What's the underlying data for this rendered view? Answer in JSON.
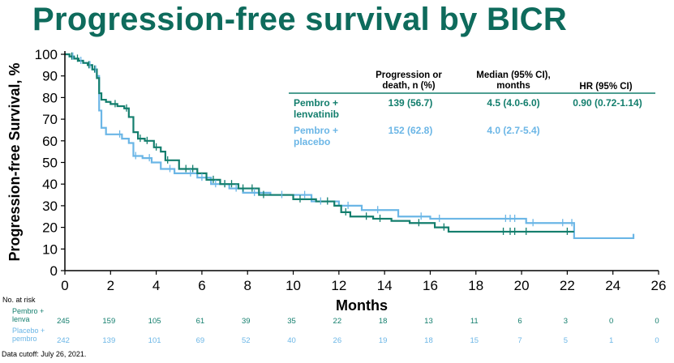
{
  "title": "Progression-free survival by BICR",
  "colors": {
    "title": "#0e6b5c",
    "pembro_lenva": "#137e6d",
    "pembro_placebo": "#6bb6e6",
    "axis": "#000000"
  },
  "footnote": "Data cutoff: July 26, 2021.",
  "chart_data": {
    "type": "line",
    "title": "Progression-free survival by BICR",
    "xlabel": "Months",
    "ylabel": "Progression-free Survival, %",
    "xlim": [
      0,
      26
    ],
    "ylim": [
      0,
      100
    ],
    "xticks": [
      "0",
      "2",
      "4",
      "6",
      "8",
      "10",
      "12",
      "14",
      "16",
      "18",
      "20",
      "22",
      "24",
      "26"
    ],
    "yticks": [
      "0",
      "10",
      "20",
      "30",
      "40",
      "50",
      "60",
      "70",
      "80",
      "90",
      "100"
    ],
    "grid": false,
    "series": [
      {
        "name": "Pembro + lenvatinib",
        "color": "#137e6d",
        "x": [
          0,
          0.2,
          0.4,
          0.6,
          0.8,
          1.0,
          1.2,
          1.4,
          1.5,
          1.6,
          1.8,
          2.0,
          2.3,
          2.6,
          2.8,
          3.0,
          3.2,
          3.5,
          3.9,
          4.2,
          4.4,
          5.0,
          5.8,
          6.2,
          6.8,
          7.6,
          8.5,
          10.0,
          11.0,
          11.8,
          12.1,
          12.5,
          13.5,
          14.3,
          15.1,
          16.2,
          16.8,
          18.5,
          22.3
        ],
        "y": [
          100,
          99,
          98,
          97,
          96,
          95,
          93,
          89,
          82,
          79,
          78,
          77,
          76,
          75,
          71,
          64,
          61,
          60,
          57,
          55,
          51,
          47,
          45,
          42,
          40,
          38,
          35,
          33,
          32,
          30,
          27,
          25,
          24,
          23,
          22,
          20,
          18,
          18,
          18
        ]
      },
      {
        "name": "Pembro + placebo",
        "color": "#6bb6e6",
        "x": [
          0,
          0.2,
          0.4,
          0.6,
          0.8,
          1.0,
          1.2,
          1.4,
          1.5,
          1.6,
          1.8,
          2.5,
          2.8,
          3.0,
          3.4,
          3.8,
          4.2,
          4.8,
          5.8,
          6.4,
          7.2,
          7.8,
          9.0,
          10.8,
          12.0,
          13.0,
          14.2,
          14.6,
          16.0,
          17.0,
          20.2,
          22.2,
          22.3,
          24.9,
          24.9
        ],
        "y": [
          100,
          99,
          98,
          97,
          96,
          95,
          93,
          90,
          74,
          66,
          63,
          61,
          59,
          53,
          52,
          50,
          47,
          45,
          43,
          40,
          38,
          36,
          35,
          32,
          30,
          28,
          28,
          25,
          24,
          24,
          22,
          22,
          15,
          15,
          17
        ]
      }
    ],
    "censor_marks": {
      "pembro_lenva": [
        0.3,
        0.55,
        1.05,
        1.3,
        2.2,
        2.7,
        3.3,
        3.6,
        4.0,
        4.5,
        5.3,
        5.6,
        6.5,
        7.0,
        7.3,
        7.8,
        8.2,
        8.7,
        10.3,
        11.5,
        12.3,
        13.2,
        13.8,
        15.5,
        16.6,
        19.2,
        19.5,
        19.7,
        20.2,
        22.0
      ],
      "pembro_placebo": [
        0.35,
        0.7,
        1.1,
        1.35,
        2.4,
        3.1,
        3.7,
        4.6,
        5.5,
        6.0,
        6.6,
        7.0,
        7.5,
        8.3,
        9.5,
        10.5,
        11.2,
        12.4,
        13.7,
        15.6,
        16.4,
        19.3,
        19.5,
        19.7,
        20.5,
        21.8,
        22.2
      ]
    },
    "legend_table": {
      "position": "top-right",
      "headers": [
        "",
        "Progression or death, n (%)",
        "Median (95% CI), months",
        "HR (95% CI)"
      ],
      "rows": [
        {
          "label_l1": "Pembro +",
          "label_l2": "lenvatinib",
          "events": "139 (56.7)",
          "median": "4.5 (4.0-6.0)",
          "hr": "0.90 (0.72-1.14)"
        },
        {
          "label_l1": "Pembro +",
          "label_l2": "placebo",
          "events": "152 (62.8)",
          "median": "4.0 (2.7-5.4)",
          "hr": ""
        }
      ]
    },
    "at_risk": {
      "title": "No. at risk",
      "rows": [
        {
          "label_l1": "Pembro +",
          "label_l2": "lenva",
          "values": [
            "245",
            "159",
            "105",
            "61",
            "39",
            "35",
            "22",
            "18",
            "13",
            "11",
            "6",
            "3",
            "0",
            "0"
          ]
        },
        {
          "label_l1": "Placebo +",
          "label_l2": "pembro",
          "values": [
            "242",
            "139",
            "101",
            "69",
            "52",
            "40",
            "26",
            "19",
            "18",
            "15",
            "7",
            "5",
            "1",
            "0"
          ]
        }
      ]
    }
  }
}
